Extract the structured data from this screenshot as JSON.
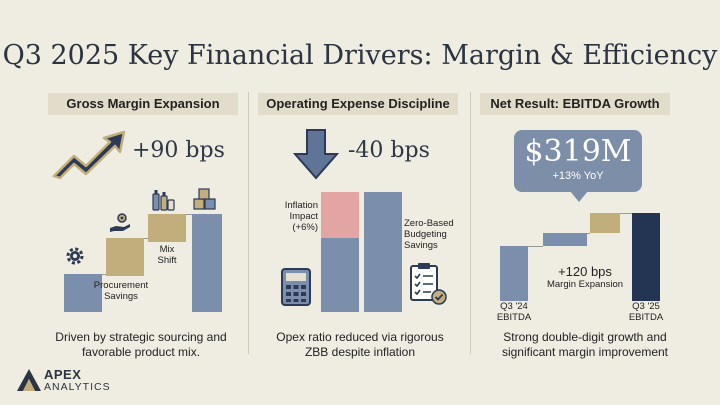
{
  "title": "Q3 2025 Key Financial Drivers: Margin & Efficiency",
  "panels": {
    "gross_margin": {
      "header": "Gross Margin Expansion",
      "change": "+90 bps",
      "step_labels": {
        "procurement": "Procurement\nSavings",
        "mix": "Mix\nShift"
      },
      "footer": "Driven by strategic sourcing and\nfavorable product mix."
    },
    "opex": {
      "header": "Operating Expense Discipline",
      "change": "-40 bps",
      "inflation_label": "Inflation\nImpact\n(+6%)",
      "zbb_label": "Zero-Based\nBudgeting\nSavings",
      "footer": "Opex ratio reduced via rigorous\nZBB despite inflation"
    },
    "ebitda": {
      "header": "Net Result: EBITDA Growth",
      "value": "$319M",
      "yoy": "+13% YoY",
      "margin_change": "+120 bps",
      "margin_label": "Margin Expansion",
      "start_label": "Q3 '24\nEBITDA",
      "end_label": "Q3 '25\nEBITDA",
      "footer": "Strong double-digit growth and\nsignificant margin improvement"
    }
  },
  "logo": {
    "name": "APEX",
    "sub": "ANALYTICS"
  },
  "colors": {
    "blue": "#7b8eab",
    "gold": "#c2ae7c",
    "pink": "#e2a5a4",
    "navy": "#243553"
  },
  "icons": [
    "trend-up-arrow-icon",
    "down-arrow-icon",
    "gear-icon",
    "hand-gear-icon",
    "bottles-icon",
    "boxes-icon",
    "calculator-icon",
    "checklist-icon",
    "apex-logo-icon"
  ]
}
